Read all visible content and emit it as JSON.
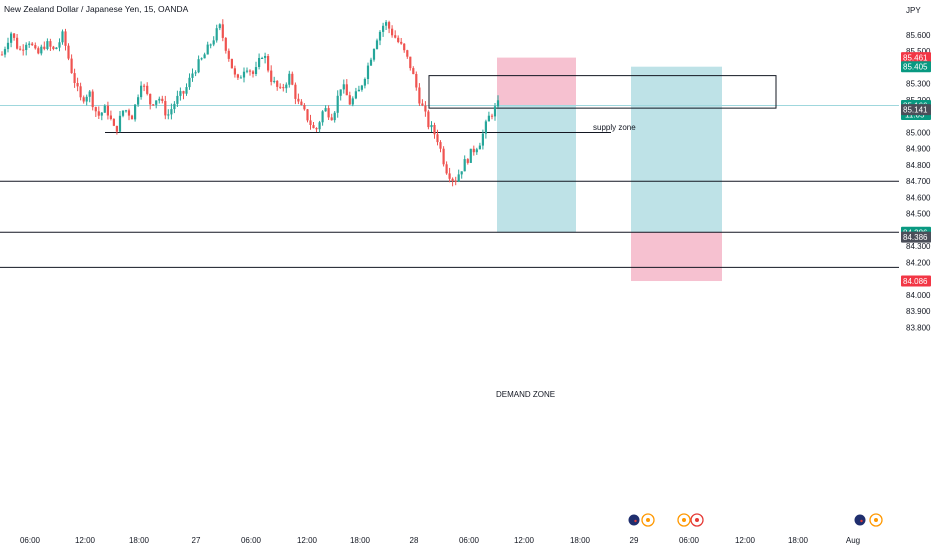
{
  "header": {
    "title": "New Zealand Dollar / Japanese Yen, 15, OANDA",
    "currency": "JPY"
  },
  "annotations": {
    "supply_zone_label": "supply zone",
    "demand_zone_label": "DEMAND ZONE"
  },
  "colors": {
    "up": "#26a69a",
    "down": "#ef5350",
    "profit_zone": "#a8d8df",
    "loss_zone": "#f4b6c8",
    "badge_red": "#f23645",
    "badge_green": "#089981",
    "badge_gray": "#4a4e59",
    "price_line": "#9fd7dd",
    "event_blue": "#1f2e6e",
    "event_orange": "#ff9800",
    "event_red": "#e53935"
  },
  "chart_data": {
    "type": "candlestick",
    "y_axis": {
      "ylim": [
        83.78,
        85.7
      ],
      "ticks": [
        "85.600",
        "85.500",
        "85.300",
        "85.200",
        "85.000",
        "84.900",
        "84.800",
        "84.700",
        "84.600",
        "84.500",
        "84.300",
        "84.200",
        "84.000",
        "83.900",
        "83.800"
      ]
    },
    "x_axis": {
      "ticks": [
        "06:00",
        "12:00",
        "18:00",
        "27",
        "06:00",
        "12:00",
        "18:00",
        "28",
        "06:00",
        "12:00",
        "18:00",
        "29",
        "06:00",
        "12:00",
        "18:00",
        "Aug"
      ]
    },
    "price_badges": [
      {
        "value": "85.461",
        "price": 85.461,
        "color": "badge_red"
      },
      {
        "value": "85.405",
        "price": 85.405,
        "color": "badge_green"
      },
      {
        "value": "85.166",
        "extra": "11:05",
        "price": 85.166,
        "color": "badge_green"
      },
      {
        "value": "85.141",
        "price": 85.141,
        "color": "badge_gray"
      },
      {
        "value": "84.386",
        "price": 84.386,
        "color": "badge_green"
      },
      {
        "value": "84.386",
        "price": 84.356,
        "color": "badge_gray"
      },
      {
        "value": "84.086",
        "price": 84.086,
        "color": "badge_red"
      }
    ],
    "horizontal_lines": [
      {
        "price": 85.0,
        "extent": "partial"
      },
      {
        "price": 84.7,
        "extent": "full"
      },
      {
        "price": 84.386,
        "extent": "full"
      },
      {
        "price": 84.17,
        "extent": "full"
      }
    ],
    "current_price": 85.166,
    "supply_zone": {
      "top": 85.35,
      "bottom": 85.15
    },
    "positions": [
      {
        "name": "short-1",
        "entry": 85.166,
        "stop": 85.461,
        "target": 84.386
      },
      {
        "name": "long-1",
        "entry": 84.386,
        "stop": 84.086,
        "target": 85.405
      }
    ],
    "waypoints": [
      85.48,
      85.62,
      85.5,
      85.58,
      85.47,
      85.55,
      85.5,
      85.6,
      85.38,
      85.2,
      85.25,
      85.1,
      85.15,
      85.0,
      85.15,
      85.1,
      85.32,
      85.18,
      85.22,
      85.1,
      85.2,
      85.25,
      85.38,
      85.45,
      85.55,
      85.65,
      85.48,
      85.3,
      85.42,
      85.35,
      85.5,
      85.32,
      85.25,
      85.35,
      85.18,
      85.1,
      85.0,
      85.15,
      85.1,
      85.3,
      85.18,
      85.25,
      85.4,
      85.58,
      85.68,
      85.6,
      85.52,
      85.4,
      85.2,
      85.05,
      84.97,
      84.78,
      84.7,
      84.8,
      84.88,
      84.95,
      85.1,
      85.17
    ],
    "events": [
      {
        "name": "nz-flag-event",
        "symbol": "flag",
        "slot": 0
      },
      {
        "name": "orange-event",
        "symbol": "orange",
        "slot": 1
      },
      {
        "name": "orange-event",
        "symbol": "orange",
        "slot": 2
      },
      {
        "name": "red-event",
        "symbol": "red",
        "slot": 3
      },
      {
        "name": "nz-flag-event",
        "symbol": "flag",
        "slot": 4
      },
      {
        "name": "orange-event",
        "symbol": "orange",
        "slot": 5
      }
    ]
  }
}
